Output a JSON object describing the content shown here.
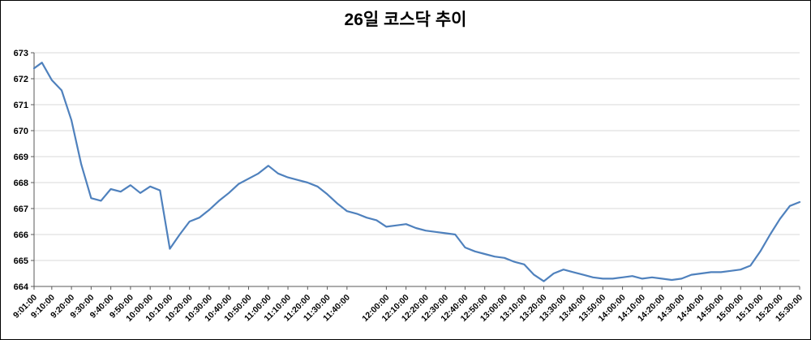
{
  "chart_data": {
    "type": "line",
    "title": "26일 코스닥 추이",
    "xlabel": "",
    "ylabel": "",
    "legend": "none",
    "grid": "horizontal",
    "ylim": [
      664,
      673
    ],
    "y_ticks": [
      664,
      665,
      666,
      667,
      668,
      669,
      670,
      671,
      672,
      673
    ],
    "x_ticks": [
      "9:01:00",
      "9:10:00",
      "9:20:00",
      "9:30:00",
      "9:40:00",
      "9:50:00",
      "10:00:00",
      "10:10:00",
      "10:20:00",
      "10:30:00",
      "10:40:00",
      "10:50:00",
      "11:00:00",
      "11:10:00",
      "11:20:00",
      "11:30:00",
      "11:40:00",
      "12:00:00",
      "12:10:00",
      "12:20:00",
      "12:30:00",
      "12:40:00",
      "12:50:00",
      "13:00:00",
      "13:10:00",
      "13:20:00",
      "13:30:00",
      "13:40:00",
      "13:50:00",
      "14:00:00",
      "14:10:00",
      "14:20:00",
      "14:30:00",
      "14:40:00",
      "14:50:00",
      "15:00:00",
      "15:10:00",
      "15:20:00",
      "15:30:00"
    ],
    "x": [
      "9:01:00",
      "9:05:00",
      "9:10:00",
      "9:15:00",
      "9:20:00",
      "9:25:00",
      "9:30:00",
      "9:35:00",
      "9:40:00",
      "9:45:00",
      "9:50:00",
      "9:55:00",
      "10:00:00",
      "10:05:00",
      "10:10:00",
      "10:15:00",
      "10:20:00",
      "10:25:00",
      "10:30:00",
      "10:35:00",
      "10:40:00",
      "10:45:00",
      "10:50:00",
      "10:55:00",
      "11:00:00",
      "11:05:00",
      "11:10:00",
      "11:15:00",
      "11:20:00",
      "11:25:00",
      "11:30:00",
      "11:35:00",
      "11:40:00",
      "11:45:00",
      "11:50:00",
      "11:55:00",
      "12:00:00",
      "12:05:00",
      "12:10:00",
      "12:15:00",
      "12:20:00",
      "12:25:00",
      "12:30:00",
      "12:35:00",
      "12:40:00",
      "12:45:00",
      "12:50:00",
      "12:55:00",
      "13:00:00",
      "13:05:00",
      "13:10:00",
      "13:15:00",
      "13:20:00",
      "13:25:00",
      "13:30:00",
      "13:35:00",
      "13:40:00",
      "13:45:00",
      "13:50:00",
      "13:55:00",
      "14:00:00",
      "14:05:00",
      "14:10:00",
      "14:15:00",
      "14:20:00",
      "14:25:00",
      "14:30:00",
      "14:35:00",
      "14:40:00",
      "14:45:00",
      "14:50:00",
      "14:55:00",
      "15:00:00",
      "15:05:00",
      "15:10:00",
      "15:15:00",
      "15:20:00",
      "15:25:00",
      "15:30:00"
    ],
    "values": [
      672.4,
      672.62,
      671.95,
      671.55,
      670.4,
      668.7,
      667.4,
      667.3,
      667.75,
      667.65,
      667.9,
      667.6,
      667.85,
      667.7,
      665.45,
      666.0,
      666.5,
      666.65,
      666.95,
      667.3,
      667.6,
      667.95,
      668.15,
      668.35,
      668.65,
      668.35,
      668.2,
      668.1,
      668.0,
      667.85,
      667.55,
      667.2,
      666.9,
      666.8,
      666.65,
      666.55,
      666.3,
      666.35,
      666.4,
      666.25,
      666.15,
      666.1,
      666.05,
      666.0,
      665.5,
      665.35,
      665.25,
      665.15,
      665.1,
      664.95,
      664.85,
      664.45,
      664.2,
      664.5,
      664.65,
      664.55,
      664.45,
      664.35,
      664.3,
      664.3,
      664.35,
      664.4,
      664.3,
      664.35,
      664.3,
      664.25,
      664.3,
      664.45,
      664.5,
      664.55,
      664.55,
      664.6,
      664.65,
      664.8,
      665.35,
      666.0,
      666.6,
      667.1,
      667.25
    ],
    "colors": {
      "line": "#4F81BD",
      "grid": "#D9D9D9",
      "axis": "#595959",
      "text": "#000000",
      "background": "#FFFFFF",
      "border": "#000000"
    }
  }
}
